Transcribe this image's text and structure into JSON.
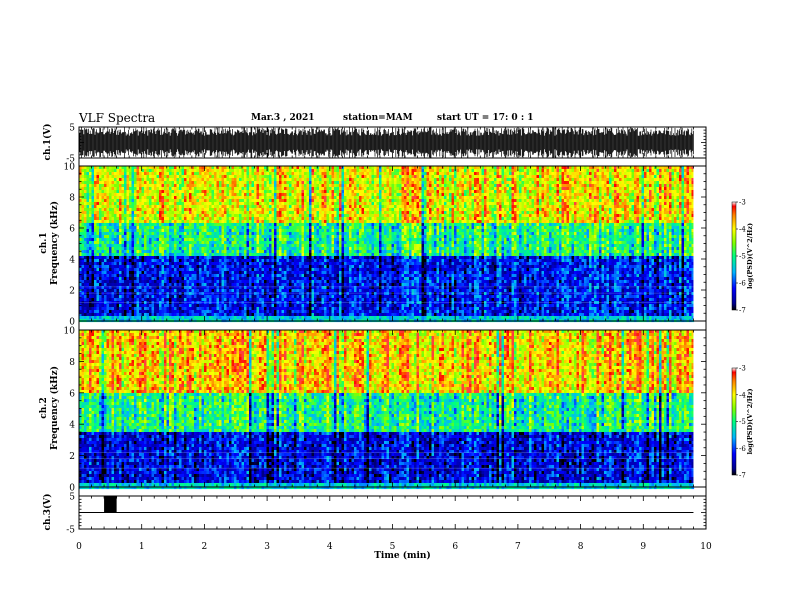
{
  "header": {
    "title": "VLF Spectra",
    "date": "Mar.3 , 2021",
    "station": "station=MAM",
    "start": "start UT = 17: 0 : 1"
  },
  "chart_data": [
    {
      "type": "line",
      "panel": "waveform ch.1",
      "ylabel": "ch.1(V)",
      "ylim": [
        -5,
        5
      ],
      "yticks": [
        "5",
        "-5"
      ],
      "description_values": {
        "signal": "dense impulsive waveform, amplitude ~ +/-5 V throughout 0-9.8 min"
      },
      "x_range": [
        0,
        9.8
      ]
    },
    {
      "type": "heatmap",
      "panel": "spectrogram ch.1",
      "ylabel": "ch.1 Frequency (kHz)",
      "ylim": [
        0,
        10
      ],
      "yticks": [
        "0",
        "2",
        "4",
        "6",
        "8",
        "10"
      ],
      "x_range": [
        0,
        9.8
      ],
      "colorbar": {
        "label": "log(PSD)(V^2/Hz)",
        "range": [
          -7,
          -3
        ],
        "ticks": [
          "-3",
          "-4",
          "-5",
          "-6",
          "-7"
        ]
      },
      "bands": [
        {
          "freq_khz": [
            0,
            4.2
          ],
          "log_psd": -6.2
        },
        {
          "freq_khz": [
            4.2,
            6.5
          ],
          "log_psd": -5.0
        },
        {
          "freq_khz": [
            6.5,
            10
          ],
          "log_psd": -4.0
        }
      ]
    },
    {
      "type": "heatmap",
      "panel": "spectrogram ch.2",
      "ylabel": "ch.2 Frequency (kHz)",
      "ylim": [
        0,
        10
      ],
      "yticks": [
        "0",
        "2",
        "4",
        "6",
        "8",
        "10"
      ],
      "x_range": [
        0,
        9.8
      ],
      "colorbar": {
        "label": "log(PSD)(V^2/Hz)",
        "range": [
          -7,
          -3
        ],
        "ticks": [
          "-3",
          "-4",
          "-5",
          "-6",
          "-7"
        ]
      },
      "bands": [
        {
          "freq_khz": [
            0,
            3.6
          ],
          "log_psd": -6.3
        },
        {
          "freq_khz": [
            3.6,
            6.0
          ],
          "log_psd": -5.0
        },
        {
          "freq_khz": [
            6.0,
            10
          ],
          "log_psd": -3.8
        }
      ]
    },
    {
      "type": "line",
      "panel": "waveform ch.3",
      "ylabel": "ch.3(V)",
      "ylim": [
        -5,
        5
      ],
      "yticks": [
        "5",
        "-5"
      ],
      "baseline_v": 0,
      "pulse": {
        "x_min": [
          0.4,
          0.6
        ],
        "y_v": [
          0,
          5
        ]
      },
      "x_range": [
        0,
        9.8
      ]
    }
  ],
  "xaxis": {
    "label": "Time (min)",
    "range": [
      0,
      10
    ],
    "ticks": [
      "0",
      "1",
      "2",
      "3",
      "4",
      "5",
      "6",
      "7",
      "8",
      "9",
      "10"
    ]
  }
}
